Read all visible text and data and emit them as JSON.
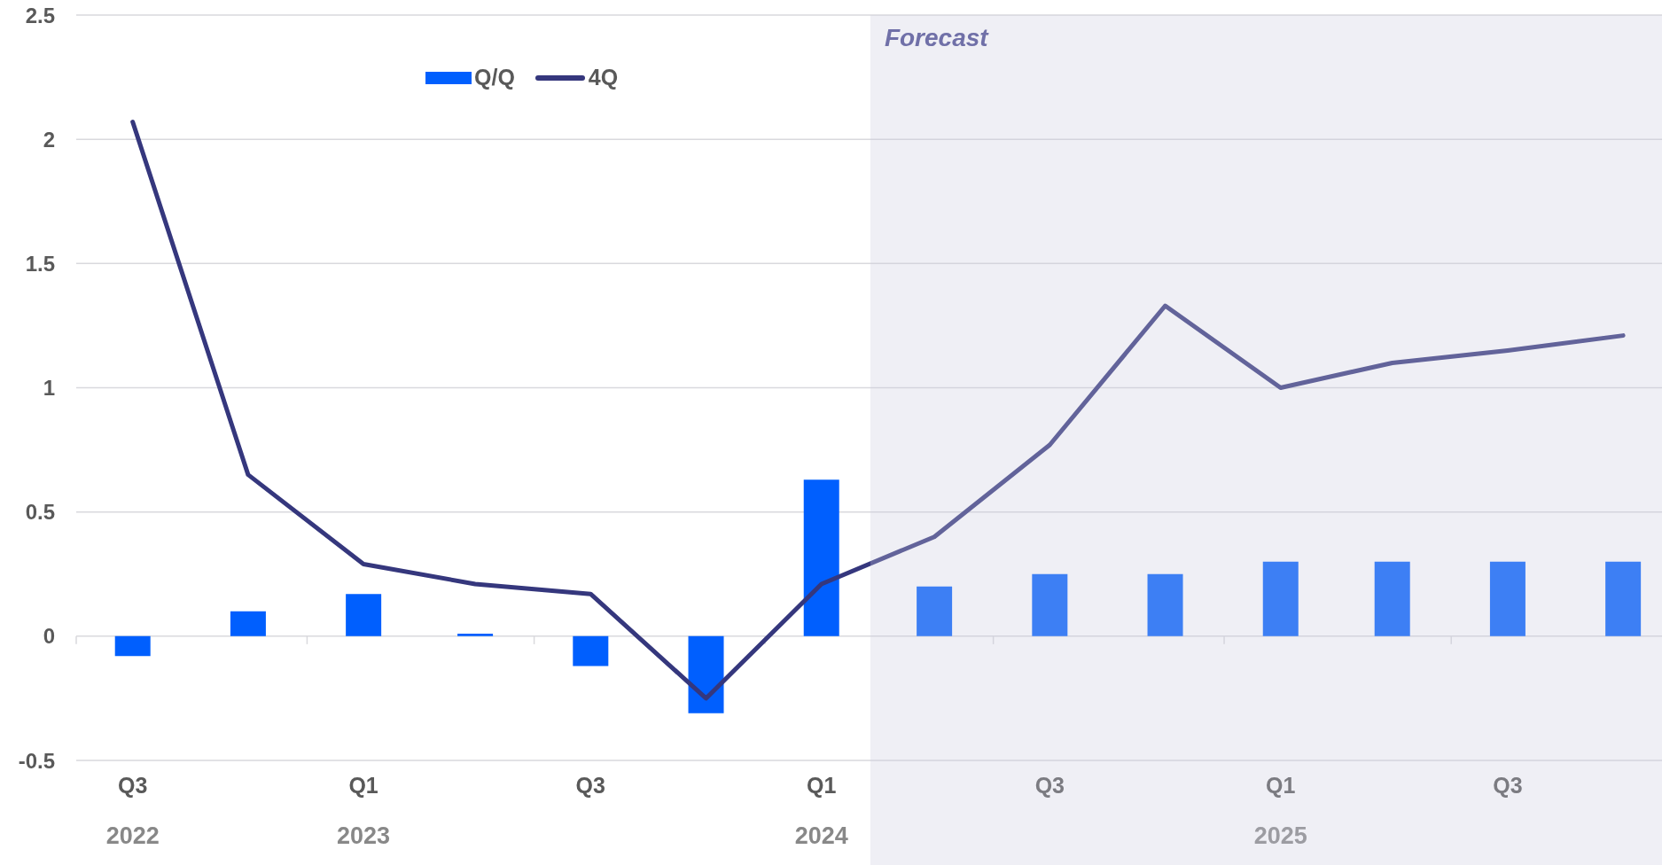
{
  "chart_data": {
    "type": "bar",
    "x": [
      "2022-08-15",
      "2022-11-15",
      "2023-02-15",
      "2023-05-15",
      "2023-08-15",
      "2023-11-15",
      "2024-02-15",
      "2024-05-15",
      "2024-08-15",
      "2024-11-15",
      "2025-02-15",
      "2025-05-15",
      "2025-08-15",
      "2025-11-15"
    ],
    "series": [
      {
        "name": "Q/Q",
        "color": "#005ffe",
        "values": [
          -0.08,
          0.1,
          0.17,
          0.01,
          -0.12,
          -0.31,
          0.63,
          0.2,
          0.25,
          0.25,
          0.3,
          0.3,
          0.3,
          0.3
        ]
      },
      {
        "name": "4Q",
        "type": "line",
        "color": "#35377d",
        "values": [
          2.07,
          0.65,
          0.29,
          0.21,
          0.17,
          -0.25,
          0.21,
          0.4,
          0.77,
          1.33,
          1.0,
          1.1,
          1.15,
          1.21
        ]
      }
    ],
    "xlim": [
      "2022-07-01",
      "2025-12-16"
    ],
    "xticks": [
      {
        "value": "2022-07-01",
        "label": null
      },
      {
        "value": "2022-08-15",
        "label": "Q3\n2022"
      },
      {
        "value": "2023-01-01",
        "label": null
      },
      {
        "value": "2023-02-15",
        "label": "Q1\n2023"
      },
      {
        "value": "2023-07-01",
        "label": null
      },
      {
        "value": "2023-08-15",
        "label": "Q3"
      },
      {
        "value": "2024-01-01",
        "label": null
      },
      {
        "value": "2024-02-15",
        "label": "Q1\n2024"
      },
      {
        "value": "2024-07-01",
        "label": null
      },
      {
        "value": "2024-08-15",
        "label": "Q3"
      },
      {
        "value": "2025-01-01",
        "label": null
      },
      {
        "value": "2025-02-15",
        "label": "Q1\n2025"
      },
      {
        "value": "2025-07-01",
        "label": null
      },
      {
        "value": "2025-08-15",
        "label": "Q3"
      }
    ],
    "ylim": [
      -0.5,
      2.5
    ],
    "yticks": [
      -0.5,
      0,
      0.5,
      1,
      1.5,
      2,
      2.5
    ],
    "grid": "y",
    "legend": "top left",
    "bands": [
      {
        "axis": "x",
        "from": "2024-03-25",
        "to": "2025-12-16",
        "label": "Forecast",
        "color": "#efeff5"
      }
    ]
  }
}
